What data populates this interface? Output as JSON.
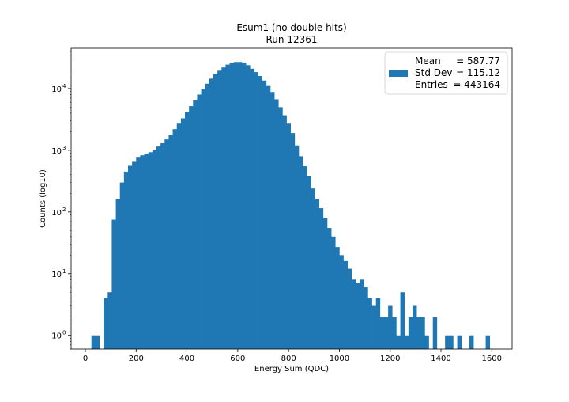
{
  "chart_data": {
    "type": "bar",
    "title": "Esum1 (no double hits)",
    "subtitle": "Run 12361",
    "xlabel": "Energy Sum (QDC)",
    "ylabel": "Counts (log10)",
    "y_scale": "log",
    "xlim": [
      -56,
      1680
    ],
    "ylim": [
      0.6,
      45000
    ],
    "bin_width": 16,
    "x_ticks": [
      0,
      200,
      400,
      600,
      800,
      1000,
      1200,
      1400,
      1600
    ],
    "x_tick_labels": [
      "0",
      "200",
      "400",
      "600",
      "800",
      "1000",
      "1200",
      "1400",
      "1600"
    ],
    "y_ticks": [
      1,
      10,
      100,
      1000,
      10000
    ],
    "y_tick_labels": [
      "10",
      "10",
      "10",
      "10",
      "10"
    ],
    "y_tick_exponents": [
      "0",
      "1",
      "2",
      "3",
      "4"
    ],
    "grid": false,
    "legend_position": "top-right",
    "color": "#1f77b4",
    "series": [
      {
        "bin_starts": [
          24,
          40,
          56,
          72,
          88,
          104,
          120,
          136,
          152,
          168,
          184,
          200,
          216,
          232,
          248,
          264,
          280,
          296,
          312,
          328,
          344,
          360,
          376,
          392,
          408,
          424,
          440,
          456,
          472,
          488,
          504,
          520,
          536,
          552,
          568,
          584,
          600,
          616,
          632,
          648,
          664,
          680,
          696,
          712,
          728,
          744,
          760,
          776,
          792,
          808,
          824,
          840,
          856,
          872,
          888,
          904,
          920,
          936,
          952,
          968,
          984,
          1000,
          1016,
          1032,
          1048,
          1064,
          1080,
          1096,
          1112,
          1128,
          1144,
          1160,
          1176,
          1192,
          1208,
          1224,
          1240,
          1256,
          1272,
          1288,
          1304,
          1320,
          1336,
          1352,
          1368,
          1384,
          1400,
          1416,
          1432,
          1448,
          1464,
          1480,
          1496,
          1512,
          1528,
          1544,
          1560,
          1576,
          1592
        ],
        "counts": [
          1,
          1,
          0,
          4,
          5,
          75,
          160,
          300,
          450,
          560,
          650,
          760,
          830,
          870,
          930,
          1000,
          1150,
          1300,
          1500,
          1800,
          2200,
          2700,
          3300,
          4200,
          5200,
          6400,
          8000,
          9800,
          12000,
          14500,
          17000,
          19500,
          22000,
          24500,
          26000,
          27000,
          27000,
          26500,
          24000,
          21000,
          18500,
          16000,
          13500,
          11000,
          8800,
          6700,
          5000,
          3700,
          2700,
          1900,
          1200,
          800,
          550,
          380,
          240,
          160,
          115,
          80,
          55,
          40,
          27,
          20,
          16,
          12,
          8,
          7,
          8,
          6,
          4,
          3,
          4,
          2,
          2,
          3,
          2,
          1,
          5,
          1,
          2,
          3,
          2,
          2,
          1,
          0,
          2,
          0,
          0,
          1,
          1,
          0,
          1,
          0,
          0,
          1,
          0,
          0,
          0,
          1,
          0
        ],
        "legend_lines": [
          {
            "label": "Mean",
            "value": "= 587.77"
          },
          {
            "label": "Std Dev",
            "value": "= 115.12"
          },
          {
            "label": "Entries",
            "value": "= 443164"
          }
        ]
      }
    ]
  }
}
